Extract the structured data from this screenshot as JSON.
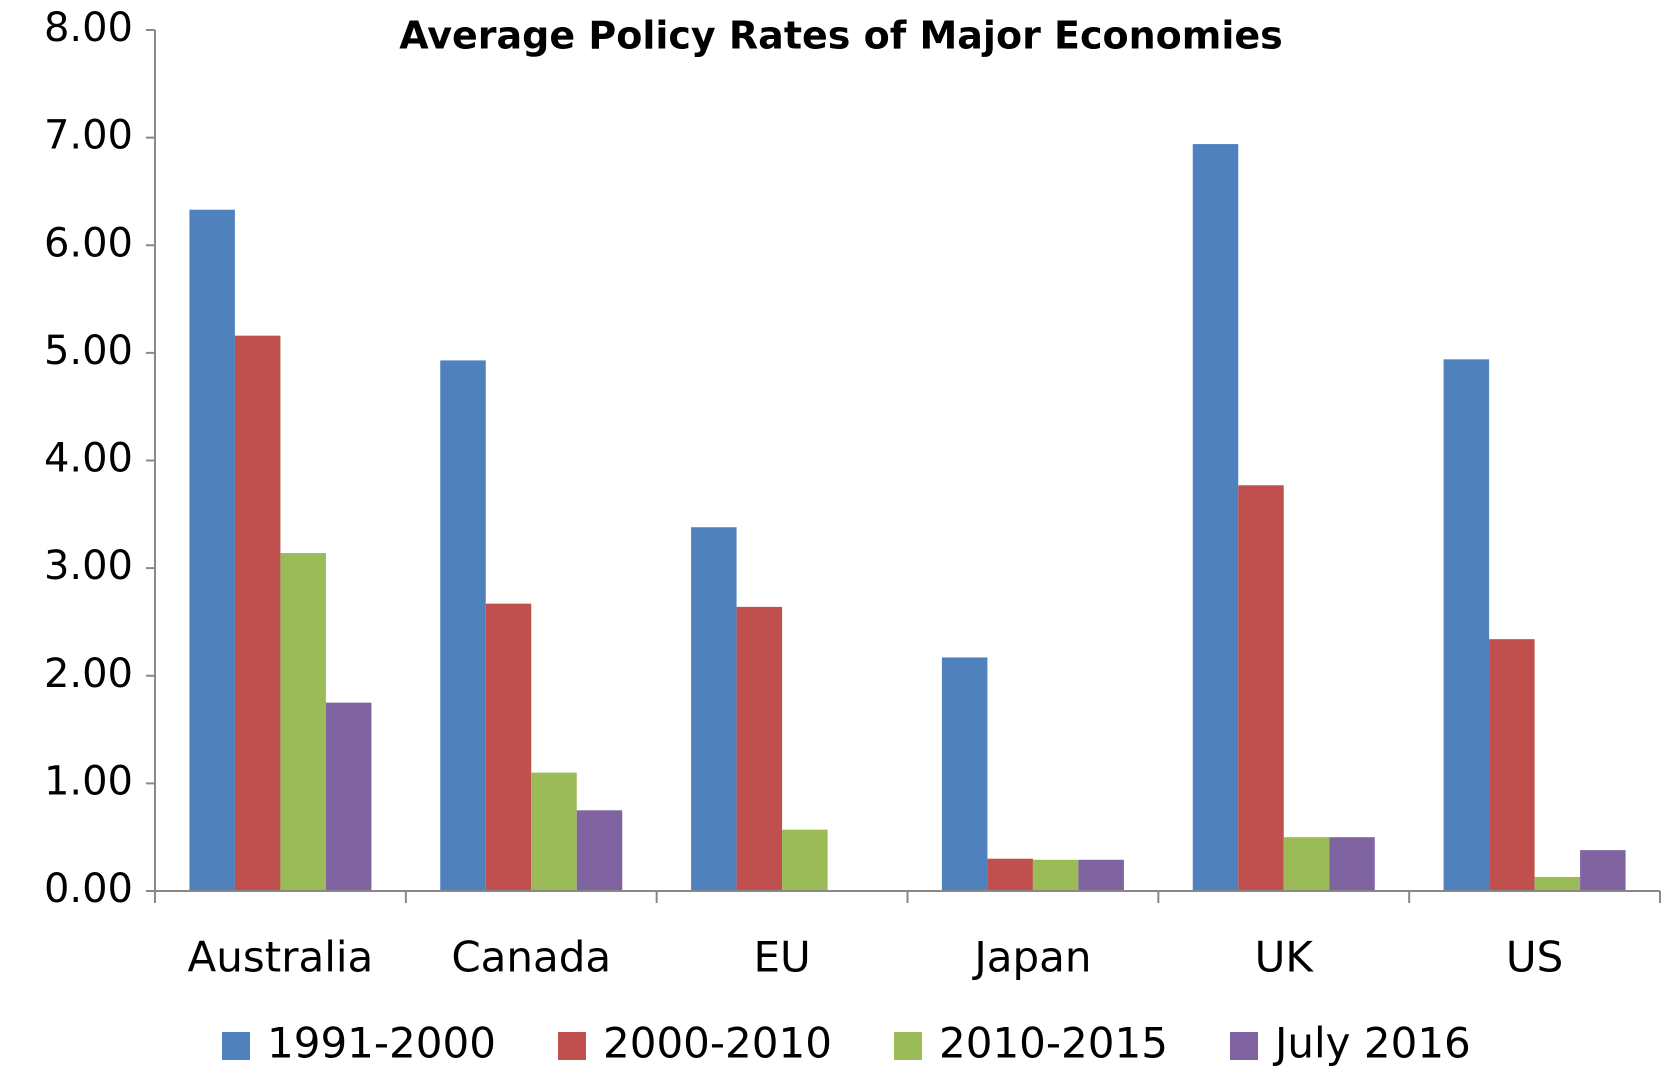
{
  "chart_data": {
    "type": "bar",
    "title": "Average Policy Rates of Major Economies",
    "categories": [
      "Australia",
      "Canada",
      "EU",
      "Japan",
      "UK",
      "US"
    ],
    "series": [
      {
        "name": "1991-2000",
        "color": "#4f81bd",
        "values": [
          6.33,
          4.93,
          3.38,
          2.17,
          6.94,
          4.94
        ]
      },
      {
        "name": "2000-2010",
        "color": "#c0504d",
        "values": [
          5.16,
          2.67,
          2.64,
          0.3,
          3.77,
          2.34
        ]
      },
      {
        "name": "2010-2015",
        "color": "#9bbb59",
        "values": [
          3.14,
          1.1,
          0.57,
          0.29,
          0.5,
          0.13
        ]
      },
      {
        "name": "July 2016",
        "color": "#8064a2",
        "values": [
          1.75,
          0.75,
          0,
          0.29,
          0.5,
          0.38
        ]
      }
    ],
    "ylim": [
      0,
      8
    ],
    "yticks": [
      {
        "value": 0,
        "label": "0.00"
      },
      {
        "value": 1,
        "label": "1.00"
      },
      {
        "value": 2,
        "label": "2.00"
      },
      {
        "value": 3,
        "label": "3.00"
      },
      {
        "value": 4,
        "label": "4.00"
      },
      {
        "value": 5,
        "label": "5.00"
      },
      {
        "value": 6,
        "label": "6.00"
      },
      {
        "value": 7,
        "label": "7.00"
      },
      {
        "value": 8,
        "label": "8.00"
      }
    ],
    "grid": false,
    "legend": "bottom"
  }
}
